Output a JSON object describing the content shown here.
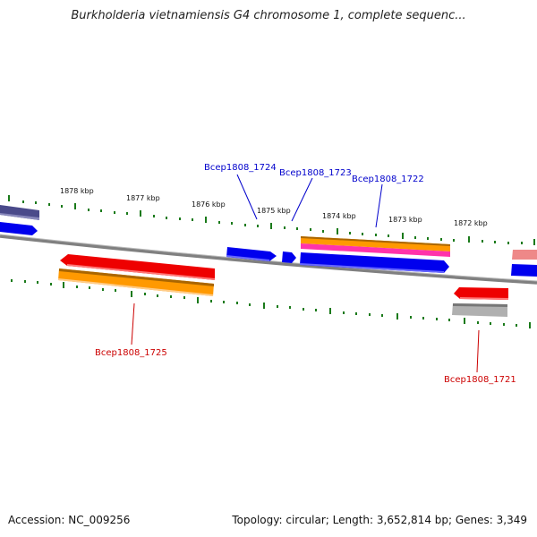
{
  "title": "Burkholderia vietnamiensis G4 chromosome 1, complete sequenc...",
  "footer": {
    "accession": "Accession: NC_009256",
    "info": "Topology: circular; Length: 3,652,814 bp; Genes: 3,349"
  },
  "ticks": [
    {
      "label": "1878 kbp"
    },
    {
      "label": "1877 kbp"
    },
    {
      "label": "1876 kbp"
    },
    {
      "label": "1875 kbp"
    },
    {
      "label": "1874 kbp"
    },
    {
      "label": "1873 kbp"
    },
    {
      "label": "1872 kbp"
    }
  ],
  "gene_labels": {
    "top": [
      "Bcep1808_1724",
      "Bcep1808_1723",
      "Bcep1808_1722"
    ],
    "bottom": [
      "Bcep1808_1725",
      "Bcep1808_1721"
    ]
  },
  "colors": {
    "forward_label": "#0000cc",
    "reverse_label": "#cc0000",
    "backbone": "#808080",
    "tick": "#1a7a1a",
    "blue": "#0000ee",
    "red": "#ee0000",
    "orange": "#ff9900",
    "magenta": "#ff33aa",
    "grey": "#b0b0b0",
    "slate": "#4a4a8a",
    "pink": "#ee8888"
  }
}
